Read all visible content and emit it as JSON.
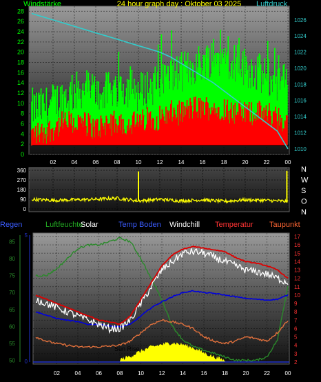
{
  "title": "24 hour graph day : Oktober 03 2025",
  "colors": {
    "green": "#00ff00",
    "red": "#ff0000",
    "cyan": "#33cccc",
    "yellow": "#ffff00",
    "white": "#ffffff",
    "blue": "#0000dd",
    "temp": "#dd0000",
    "dew": "#e0703c",
    "humidity": "#2a8a2a",
    "label_blue": "#3a5cff",
    "label_red": "#ff3333",
    "label_dew": "#ff6633",
    "label_green": "#22aa22",
    "label_blue_axis": "#2233cc"
  },
  "x_ticks": [
    "02",
    "04",
    "06",
    "08",
    "10",
    "12",
    "14",
    "16",
    "18",
    "20",
    "22",
    "00"
  ],
  "chart_data": [
    {
      "type": "line",
      "name": "wind",
      "left_label": "Windstärke",
      "right_label": "Luftdruck",
      "left_ticks": [
        "0",
        "2",
        "4",
        "6",
        "8",
        "10",
        "12",
        "14",
        "16",
        "18",
        "20",
        "22",
        "24",
        "26",
        "28"
      ],
      "right_ticks": [
        "1010",
        "1012",
        "1014",
        "1016",
        "1018",
        "1020",
        "1022",
        "1024",
        "1026"
      ],
      "ylim_left": [
        0,
        29
      ],
      "ylim_right": [
        1009.3,
        1027.7
      ],
      "pressure": {
        "x": [
          0,
          1,
          2,
          3,
          4,
          5,
          6,
          7,
          8,
          9,
          10,
          11,
          12,
          13,
          14,
          15,
          16,
          17,
          18,
          19,
          20,
          21,
          22,
          23,
          24
        ],
        "y": [
          1026.8,
          1026.4,
          1026.0,
          1025.6,
          1025.2,
          1024.8,
          1024.4,
          1024.0,
          1023.6,
          1023.2,
          1022.8,
          1022.4,
          1022.0,
          1021.4,
          1020.6,
          1019.8,
          1019.0,
          1018.2,
          1017.2,
          1016.2,
          1015.2,
          1014.2,
          1013.2,
          1012.2,
          1010.0
        ]
      },
      "gust": {
        "x": [
          0,
          1,
          2,
          3,
          4,
          5,
          6,
          7,
          8,
          9,
          10,
          11,
          12,
          13,
          14,
          15,
          16,
          17,
          18,
          19,
          20,
          21,
          22,
          23,
          24
        ],
        "y": [
          9,
          9,
          10,
          11,
          12,
          13,
          12,
          12,
          13,
          13,
          12,
          13,
          14,
          15,
          16,
          17,
          18,
          19,
          19,
          18,
          17,
          16,
          15,
          14,
          14
        ]
      },
      "wind": {
        "x": [
          0,
          1,
          2,
          3,
          4,
          5,
          6,
          7,
          8,
          9,
          10,
          11,
          12,
          13,
          14,
          15,
          16,
          17,
          18,
          19,
          20,
          21,
          22,
          23,
          24
        ],
        "y": [
          4,
          4,
          5,
          6,
          6,
          6,
          5,
          6,
          6,
          6,
          6,
          7,
          7,
          8,
          8,
          9,
          9,
          9,
          9,
          8,
          8,
          8,
          8,
          7,
          6
        ]
      }
    },
    {
      "type": "line",
      "name": "wind_direction",
      "left_ticks": [
        "0",
        "90",
        "180",
        "270",
        "360"
      ],
      "right_ticks": [
        "N",
        "W",
        "S",
        "O",
        "N"
      ],
      "ylim": [
        0,
        360
      ],
      "direction": {
        "x": [
          0,
          2,
          4,
          6,
          8,
          10,
          12,
          14,
          16,
          18,
          20,
          22,
          24
        ],
        "y": [
          90,
          80,
          85,
          90,
          100,
          75,
          90,
          75,
          85,
          70,
          85,
          80,
          70
        ]
      }
    },
    {
      "type": "line",
      "name": "temperature",
      "legend": [
        "Regen",
        "Luftfeuchte",
        "Solar",
        "Temp Boden",
        "Windchill",
        "Temperatur",
        "Taupunkt"
      ],
      "left_ticks_humidity": [
        "50",
        "55",
        "60",
        "65",
        "70",
        "75",
        "80",
        "85"
      ],
      "ylim_humidity": [
        49.5,
        86.5
      ],
      "left_ticks_rain": [
        "0",
        "5"
      ],
      "right_ticks": [
        "2",
        "3",
        "4",
        "5",
        "6",
        "7",
        "8",
        "9",
        "10",
        "11",
        "12",
        "13",
        "14",
        "15",
        "16",
        "17"
      ],
      "ylim_right": [
        2,
        17
      ],
      "annotation": "Sun Rise",
      "temperature": {
        "x": [
          0,
          1,
          2,
          3,
          4,
          5,
          6,
          7,
          8,
          9,
          10,
          11,
          12,
          13,
          14,
          15,
          16,
          17,
          18,
          19,
          20,
          21,
          22,
          23,
          24
        ],
        "y": [
          10,
          9.5,
          9,
          8.5,
          8,
          7.5,
          7,
          6.8,
          6.5,
          7.5,
          9.5,
          11.5,
          13.5,
          14.8,
          15.5,
          15.8,
          15.6,
          15.4,
          15.2,
          14.5,
          14,
          13.8,
          13.5,
          13,
          12
        ]
      },
      "windchill": {
        "x": [
          0,
          1,
          2,
          3,
          4,
          5,
          6,
          7,
          8,
          9,
          10,
          11,
          12,
          13,
          14,
          15,
          16,
          17,
          18,
          19,
          20,
          21,
          22,
          23,
          24
        ],
        "y": [
          9.5,
          9,
          8.5,
          8,
          7.5,
          7,
          6.5,
          6,
          6,
          7,
          9,
          11,
          13,
          14,
          15,
          15.2,
          15,
          14.5,
          14,
          13.5,
          13,
          12.8,
          12.5,
          12,
          11.5
        ]
      },
      "soil_temp": {
        "x": [
          0,
          1,
          2,
          3,
          4,
          5,
          6,
          7,
          8,
          9,
          10,
          11,
          12,
          13,
          14,
          15,
          16,
          17,
          18,
          19,
          20,
          21,
          22,
          23,
          24
        ],
        "y": [
          8,
          7.6,
          7.2,
          7,
          6.8,
          6.5,
          6.5,
          6.3,
          6.2,
          6.5,
          7.5,
          8.5,
          9.2,
          9.8,
          10.3,
          10.5,
          10.3,
          10.2,
          10,
          9.8,
          9.6,
          9.5,
          9.4,
          9.5,
          10
        ]
      },
      "dewpoint": {
        "x": [
          0,
          1,
          2,
          3,
          4,
          5,
          6,
          7,
          8,
          9,
          10,
          11,
          12,
          13,
          14,
          15,
          16,
          17,
          18,
          19,
          20,
          21,
          22,
          23,
          24
        ],
        "y": [
          5,
          4.5,
          4.2,
          4,
          3.8,
          3.8,
          3.8,
          3.9,
          4,
          4.5,
          5.5,
          6.5,
          7,
          6.8,
          6.5,
          6,
          5,
          4.5,
          4.2,
          4.5,
          5,
          4.8,
          4.5,
          5.5,
          7
        ]
      },
      "humidity": {
        "x": [
          0,
          1,
          2,
          3,
          4,
          5,
          6,
          7,
          8,
          9,
          10,
          11,
          12,
          13,
          14,
          15,
          16,
          17,
          18,
          19,
          20,
          21,
          22,
          23,
          24
        ],
        "y": [
          75,
          75,
          77,
          80,
          83,
          84,
          84,
          85,
          86,
          85,
          80,
          74,
          68,
          60,
          56,
          54,
          53,
          52,
          51,
          50,
          50,
          50,
          51,
          56,
          72
        ]
      },
      "solar": {
        "x": [
          8,
          9,
          10,
          11,
          12,
          13,
          14,
          15,
          16,
          17,
          18
        ],
        "y": [
          2.2,
          2.6,
          3.2,
          3.7,
          4,
          4.2,
          4,
          3.6,
          3.0,
          2.5,
          2.1
        ]
      }
    }
  ]
}
